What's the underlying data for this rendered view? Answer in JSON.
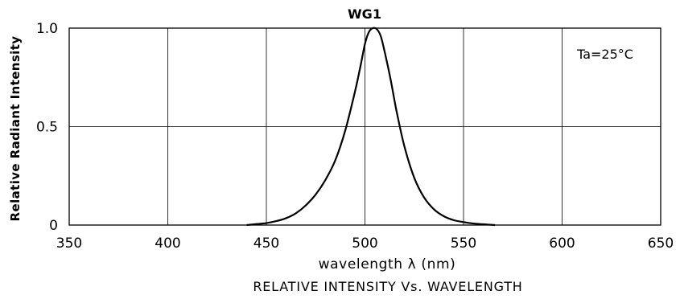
{
  "chart_data": {
    "type": "line",
    "title": "WG1",
    "xlabel": "wavelength λ (nm)",
    "ylabel": "Relative Radiant Intensity",
    "caption": "RELATIVE INTENSITY Vs. WAVELENGTH",
    "annotation": "Ta=25°C",
    "xlim": [
      350,
      650
    ],
    "ylim": [
      0,
      1.0
    ],
    "x_ticks": [
      350,
      400,
      450,
      500,
      550,
      600,
      650
    ],
    "x_tick_labels": [
      "350",
      "400",
      "450",
      "500",
      "550",
      "600",
      "650"
    ],
    "y_ticks": [
      0,
      0.5,
      1.0
    ],
    "y_tick_labels": [
      "0",
      "0.5",
      "1.0"
    ],
    "grid": true,
    "series": [
      {
        "x": [
          440,
          445,
          450,
          455,
          460,
          465,
          470,
          475,
          480,
          485,
          490,
          495,
          498,
          500,
          502,
          504,
          506,
          508,
          510,
          513,
          516,
          520,
          525,
          530,
          535,
          540,
          545,
          550,
          555,
          560,
          566
        ],
        "y": [
          0.0,
          0.005,
          0.01,
          0.02,
          0.035,
          0.06,
          0.1,
          0.155,
          0.23,
          0.33,
          0.48,
          0.68,
          0.82,
          0.92,
          0.98,
          1.0,
          0.995,
          0.96,
          0.88,
          0.74,
          0.58,
          0.4,
          0.24,
          0.14,
          0.08,
          0.045,
          0.025,
          0.015,
          0.008,
          0.004,
          0.0
        ]
      }
    ]
  }
}
